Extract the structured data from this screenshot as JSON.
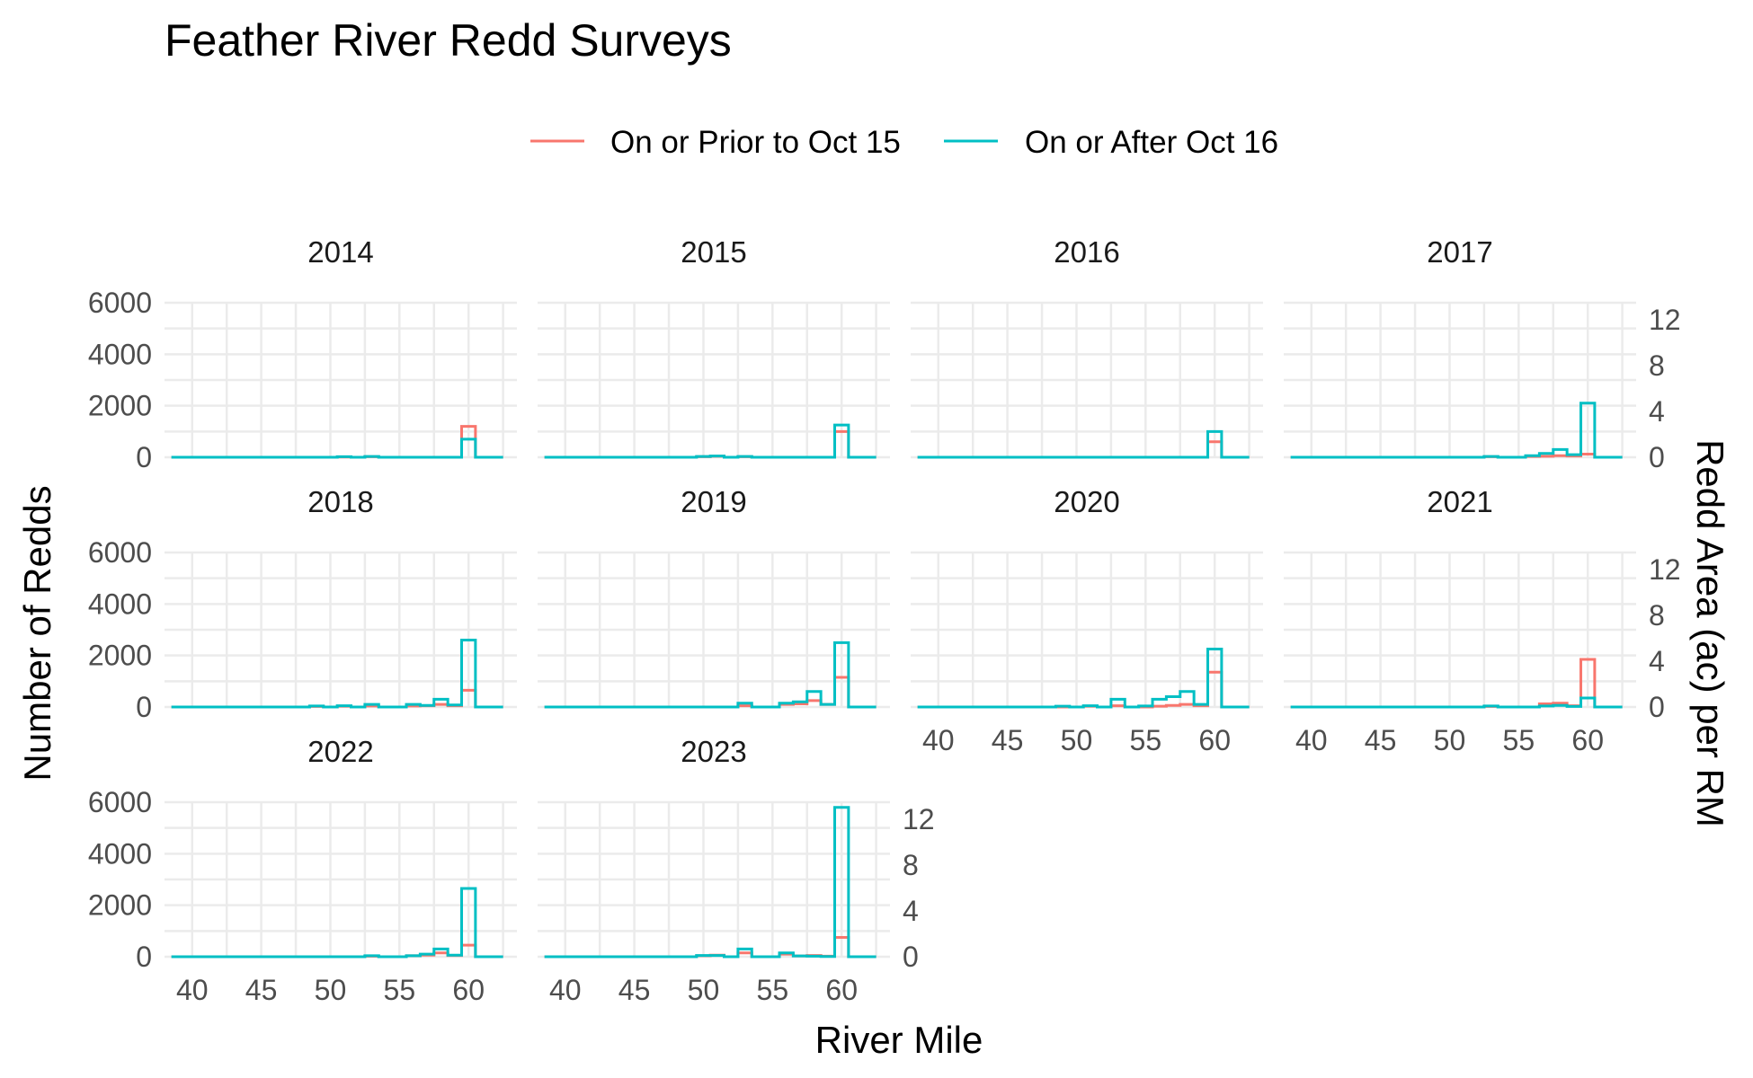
{
  "chart_data": {
    "type": "line",
    "title": "Feather River Redd Surveys",
    "xlabel": "River Mile",
    "ylabel": "Number of Redds",
    "y2label": "Redd Area (ac) per RM",
    "xlim": [
      38,
      63.5
    ],
    "ylim": [
      0,
      6000
    ],
    "y2lim": [
      0,
      13.5
    ],
    "x_ticks": [
      40,
      45,
      50,
      55,
      60
    ],
    "y_ticks": [
      0,
      2000,
      4000,
      6000
    ],
    "y2_ticks": [
      0,
      4,
      8,
      12
    ],
    "grid": true,
    "legend_position": "top",
    "series_info": [
      {
        "name": "On or Prior to Oct 15",
        "color": "#F8766D"
      },
      {
        "name": "On or After Oct 16",
        "color": "#00BFC4"
      }
    ],
    "x_bins": [
      39,
      40,
      41,
      42,
      43,
      44,
      45,
      46,
      47,
      48,
      49,
      50,
      51,
      52,
      53,
      54,
      55,
      56,
      57,
      58,
      59,
      60,
      61,
      62
    ],
    "panels": [
      {
        "label": "2014",
        "early": [
          0,
          0,
          0,
          0,
          0,
          0,
          0,
          0,
          0,
          0,
          0,
          0,
          10,
          0,
          20,
          0,
          0,
          0,
          0,
          0,
          0,
          1200,
          0,
          0
        ],
        "late": [
          0,
          0,
          0,
          0,
          0,
          0,
          0,
          0,
          0,
          0,
          0,
          0,
          20,
          0,
          30,
          0,
          0,
          0,
          0,
          0,
          0,
          700,
          0,
          0
        ]
      },
      {
        "label": "2015",
        "early": [
          0,
          0,
          0,
          0,
          0,
          0,
          0,
          0,
          0,
          0,
          0,
          20,
          40,
          0,
          20,
          0,
          0,
          0,
          0,
          0,
          0,
          1000,
          0,
          0
        ],
        "late": [
          0,
          0,
          0,
          0,
          0,
          0,
          0,
          0,
          0,
          0,
          0,
          30,
          50,
          0,
          30,
          0,
          0,
          0,
          0,
          0,
          0,
          1250,
          0,
          0
        ]
      },
      {
        "label": "2016",
        "early": [
          0,
          0,
          0,
          0,
          0,
          0,
          0,
          0,
          0,
          0,
          0,
          0,
          0,
          0,
          0,
          0,
          0,
          0,
          0,
          0,
          0,
          600,
          0,
          0
        ],
        "late": [
          0,
          0,
          0,
          0,
          0,
          0,
          0,
          0,
          0,
          0,
          0,
          0,
          0,
          0,
          0,
          0,
          0,
          0,
          0,
          0,
          0,
          1000,
          0,
          0
        ]
      },
      {
        "label": "2017",
        "early": [
          0,
          0,
          0,
          0,
          0,
          0,
          0,
          0,
          0,
          0,
          0,
          0,
          0,
          0,
          20,
          0,
          0,
          30,
          40,
          60,
          50,
          120,
          0,
          0
        ],
        "late": [
          0,
          0,
          0,
          0,
          0,
          0,
          0,
          0,
          0,
          0,
          0,
          0,
          0,
          0,
          30,
          0,
          0,
          60,
          150,
          300,
          100,
          2100,
          0,
          0
        ]
      },
      {
        "label": "2018",
        "early": [
          0,
          0,
          0,
          0,
          0,
          0,
          0,
          0,
          0,
          0,
          20,
          0,
          30,
          0,
          40,
          0,
          0,
          40,
          50,
          100,
          50,
          650,
          0,
          0
        ],
        "late": [
          0,
          0,
          0,
          0,
          0,
          0,
          0,
          0,
          0,
          0,
          40,
          0,
          50,
          0,
          100,
          0,
          0,
          100,
          60,
          300,
          80,
          2600,
          0,
          0
        ]
      },
      {
        "label": "2019",
        "early": [
          0,
          0,
          0,
          0,
          0,
          0,
          0,
          0,
          0,
          0,
          0,
          0,
          0,
          0,
          50,
          0,
          0,
          100,
          120,
          250,
          100,
          1150,
          0,
          0
        ],
        "late": [
          0,
          0,
          0,
          0,
          0,
          0,
          0,
          0,
          0,
          0,
          0,
          0,
          0,
          0,
          150,
          0,
          0,
          150,
          200,
          600,
          100,
          2500,
          0,
          0
        ]
      },
      {
        "label": "2020",
        "early": [
          0,
          0,
          0,
          0,
          0,
          0,
          0,
          0,
          0,
          0,
          0,
          0,
          30,
          0,
          50,
          0,
          0,
          30,
          60,
          100,
          50,
          1350,
          0,
          0
        ],
        "late": [
          0,
          0,
          0,
          0,
          0,
          0,
          0,
          0,
          0,
          0,
          30,
          0,
          50,
          0,
          300,
          0,
          40,
          300,
          400,
          600,
          100,
          2250,
          0,
          0
        ]
      },
      {
        "label": "2021",
        "early": [
          0,
          0,
          0,
          0,
          0,
          0,
          0,
          0,
          0,
          0,
          0,
          0,
          0,
          0,
          20,
          0,
          0,
          0,
          120,
          150,
          50,
          1850,
          0,
          0
        ],
        "late": [
          0,
          0,
          0,
          0,
          0,
          0,
          0,
          0,
          0,
          0,
          0,
          0,
          0,
          0,
          40,
          0,
          0,
          0,
          40,
          60,
          20,
          350,
          0,
          0
        ]
      },
      {
        "label": "2022",
        "early": [
          0,
          0,
          0,
          0,
          0,
          0,
          0,
          0,
          0,
          0,
          0,
          0,
          0,
          0,
          20,
          0,
          0,
          40,
          60,
          150,
          50,
          450,
          0,
          0
        ],
        "late": [
          0,
          0,
          0,
          0,
          0,
          0,
          0,
          0,
          0,
          0,
          0,
          0,
          0,
          0,
          40,
          0,
          0,
          40,
          100,
          300,
          60,
          2650,
          0,
          0
        ]
      },
      {
        "label": "2023",
        "early": [
          0,
          0,
          0,
          0,
          0,
          0,
          0,
          0,
          0,
          0,
          0,
          40,
          60,
          0,
          150,
          0,
          0,
          100,
          30,
          50,
          20,
          750,
          0,
          0
        ],
        "late": [
          0,
          0,
          0,
          0,
          0,
          0,
          0,
          0,
          0,
          0,
          0,
          50,
          50,
          0,
          300,
          0,
          0,
          150,
          30,
          20,
          10,
          5800,
          0,
          0
        ]
      }
    ]
  }
}
